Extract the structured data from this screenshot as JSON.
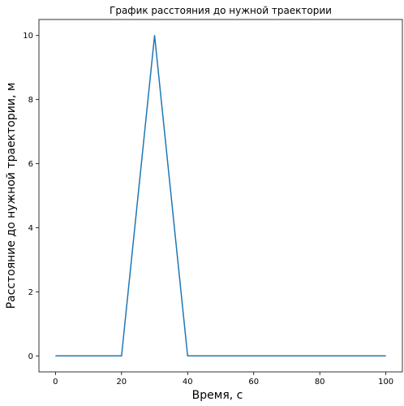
{
  "chart_data": {
    "type": "line",
    "title": "График расстояния до нужной траектории",
    "xlabel": "Время, с",
    "ylabel": "Расстояние до нужной траектории, м",
    "xlim": [
      -5,
      105
    ],
    "ylim": [
      -0.5,
      10.5
    ],
    "xticks": [
      0,
      20,
      40,
      60,
      80,
      100
    ],
    "yticks": [
      0,
      2,
      4,
      6,
      8,
      10
    ],
    "grid": false,
    "series": [
      {
        "color": "#1f77b4",
        "x": [
          0,
          10,
          20,
          30,
          40,
          50,
          60,
          70,
          80,
          90,
          100
        ],
        "y": [
          0,
          0,
          0,
          10,
          0,
          0,
          0,
          0,
          0,
          0,
          0
        ]
      }
    ]
  }
}
